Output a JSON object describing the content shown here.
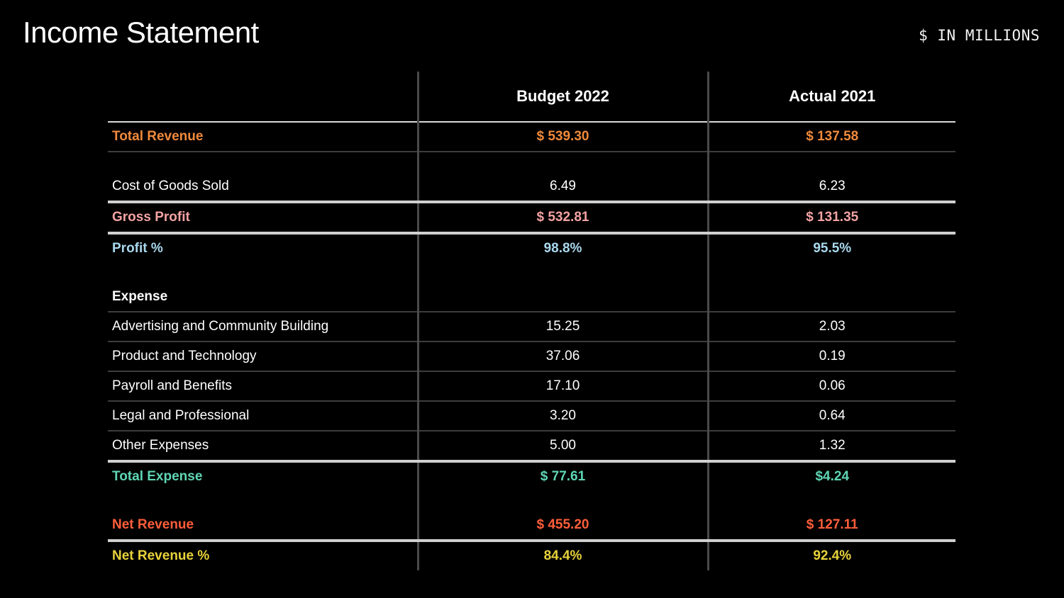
{
  "header": {
    "title": "Income Statement",
    "unit": "$ IN MILLIONS"
  },
  "table": {
    "columns": [
      "",
      "Budget 2022",
      "Actual 2021"
    ],
    "rows": {
      "total_revenue": {
        "label": "Total Revenue",
        "budget": "$ 539.30",
        "actual": "$ 137.58"
      },
      "cogs": {
        "label": "Cost of Goods Sold",
        "budget": "6.49",
        "actual": "6.23"
      },
      "gross_profit": {
        "label": "Gross Profit",
        "budget": "$ 532.81",
        "actual": "$ 131.35"
      },
      "profit_pct": {
        "label": "Profit %",
        "budget": "98.8%",
        "actual": "95.5%"
      },
      "expense_header": {
        "label": "Expense"
      },
      "advertising": {
        "label": "Advertising and Community Building",
        "budget": "15.25",
        "actual": "2.03"
      },
      "product_tech": {
        "label": "Product and Technology",
        "budget": "37.06",
        "actual": "0.19"
      },
      "payroll": {
        "label": "Payroll and Benefits",
        "budget": "17.10",
        "actual": "0.06"
      },
      "legal": {
        "label": "Legal and Professional",
        "budget": "3.20",
        "actual": "0.64"
      },
      "other": {
        "label": "Other Expenses",
        "budget": "5.00",
        "actual": "1.32"
      },
      "total_expense": {
        "label": "Total Expense",
        "budget": "$ 77.61",
        "actual": "$4.24"
      },
      "net_revenue": {
        "label": "Net Revenue",
        "budget": "$ 455.20",
        "actual": "$ 127.11"
      },
      "net_revenue_pct": {
        "label": "Net Revenue %",
        "budget": "84.4%",
        "actual": "92.4%"
      }
    }
  },
  "colors": {
    "revenue": "#f08a3c",
    "gross_profit": "#f4a3a3",
    "profit_pct": "#a9d8ee",
    "total_expense": "#5fd6b3",
    "net_revenue": "#ff5e3a",
    "net_revenue_pct": "#e8d23a"
  }
}
